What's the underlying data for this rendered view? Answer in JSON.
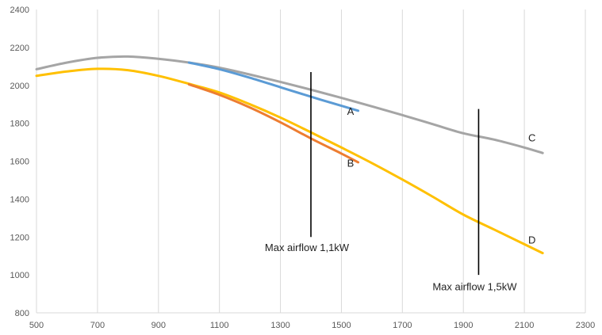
{
  "chart_data": {
    "type": "line",
    "title": "",
    "xlabel": "",
    "ylabel": "",
    "xlim": [
      500,
      2300
    ],
    "ylim": [
      800,
      2400
    ],
    "xticks": [
      500,
      700,
      900,
      1100,
      1300,
      1500,
      1700,
      1900,
      2100,
      2300
    ],
    "yticks": [
      800,
      1000,
      1200,
      1400,
      1600,
      1800,
      2000,
      2200,
      2400
    ],
    "grid": {
      "vertical": true,
      "horizontal": false
    },
    "series": [
      {
        "name": "C",
        "color": "#a5a5a5",
        "x": [
          500,
          600,
          700,
          800,
          900,
          1000,
          1100,
          1200,
          1300,
          1400,
          1500,
          1600,
          1700,
          1800,
          1900,
          2000,
          2100,
          2160
        ],
        "y": [
          2085,
          2120,
          2145,
          2152,
          2140,
          2120,
          2093,
          2057,
          2018,
          1977,
          1934,
          1889,
          1843,
          1795,
          1747,
          1714,
          1672,
          1643
        ]
      },
      {
        "name": "A",
        "color": "#5b9bd5",
        "x": [
          1000,
          1100,
          1200,
          1300,
          1400,
          1500,
          1555
        ],
        "y": [
          2120,
          2085,
          2040,
          1990,
          1940,
          1892,
          1866
        ]
      },
      {
        "name": "D",
        "color": "#ffc000",
        "x": [
          500,
          600,
          700,
          800,
          900,
          1000,
          1100,
          1200,
          1300,
          1400,
          1500,
          1600,
          1700,
          1800,
          1900,
          2000,
          2100,
          2160
        ],
        "y": [
          2050,
          2073,
          2087,
          2080,
          2050,
          2008,
          1962,
          1900,
          1830,
          1752,
          1672,
          1590,
          1503,
          1412,
          1318,
          1240,
          1162,
          1115
        ]
      },
      {
        "name": "B",
        "color": "#ed7d31",
        "x": [
          1000,
          1100,
          1200,
          1300,
          1400,
          1500,
          1555
        ],
        "y": [
          2005,
          1950,
          1883,
          1805,
          1720,
          1640,
          1594
        ]
      }
    ],
    "series_labels": [
      {
        "text": "A",
        "x": 1530,
        "y": 1845,
        "color": "#222222"
      },
      {
        "text": "B",
        "x": 1530,
        "y": 1570,
        "color": "#222222"
      },
      {
        "text": "C",
        "x": 2125,
        "y": 1705,
        "color": "#222222"
      },
      {
        "text": "D",
        "x": 2125,
        "y": 1165,
        "color": "#222222"
      }
    ],
    "markers": [
      {
        "x": 1400,
        "y_from": 1200,
        "y_to": 2070,
        "label": "Max airflow 1,1kW",
        "label_y": 1125
      },
      {
        "x": 1950,
        "y_from": 1000,
        "y_to": 1875,
        "label": "Max airflow 1,5kW",
        "label_y": 920
      }
    ]
  }
}
